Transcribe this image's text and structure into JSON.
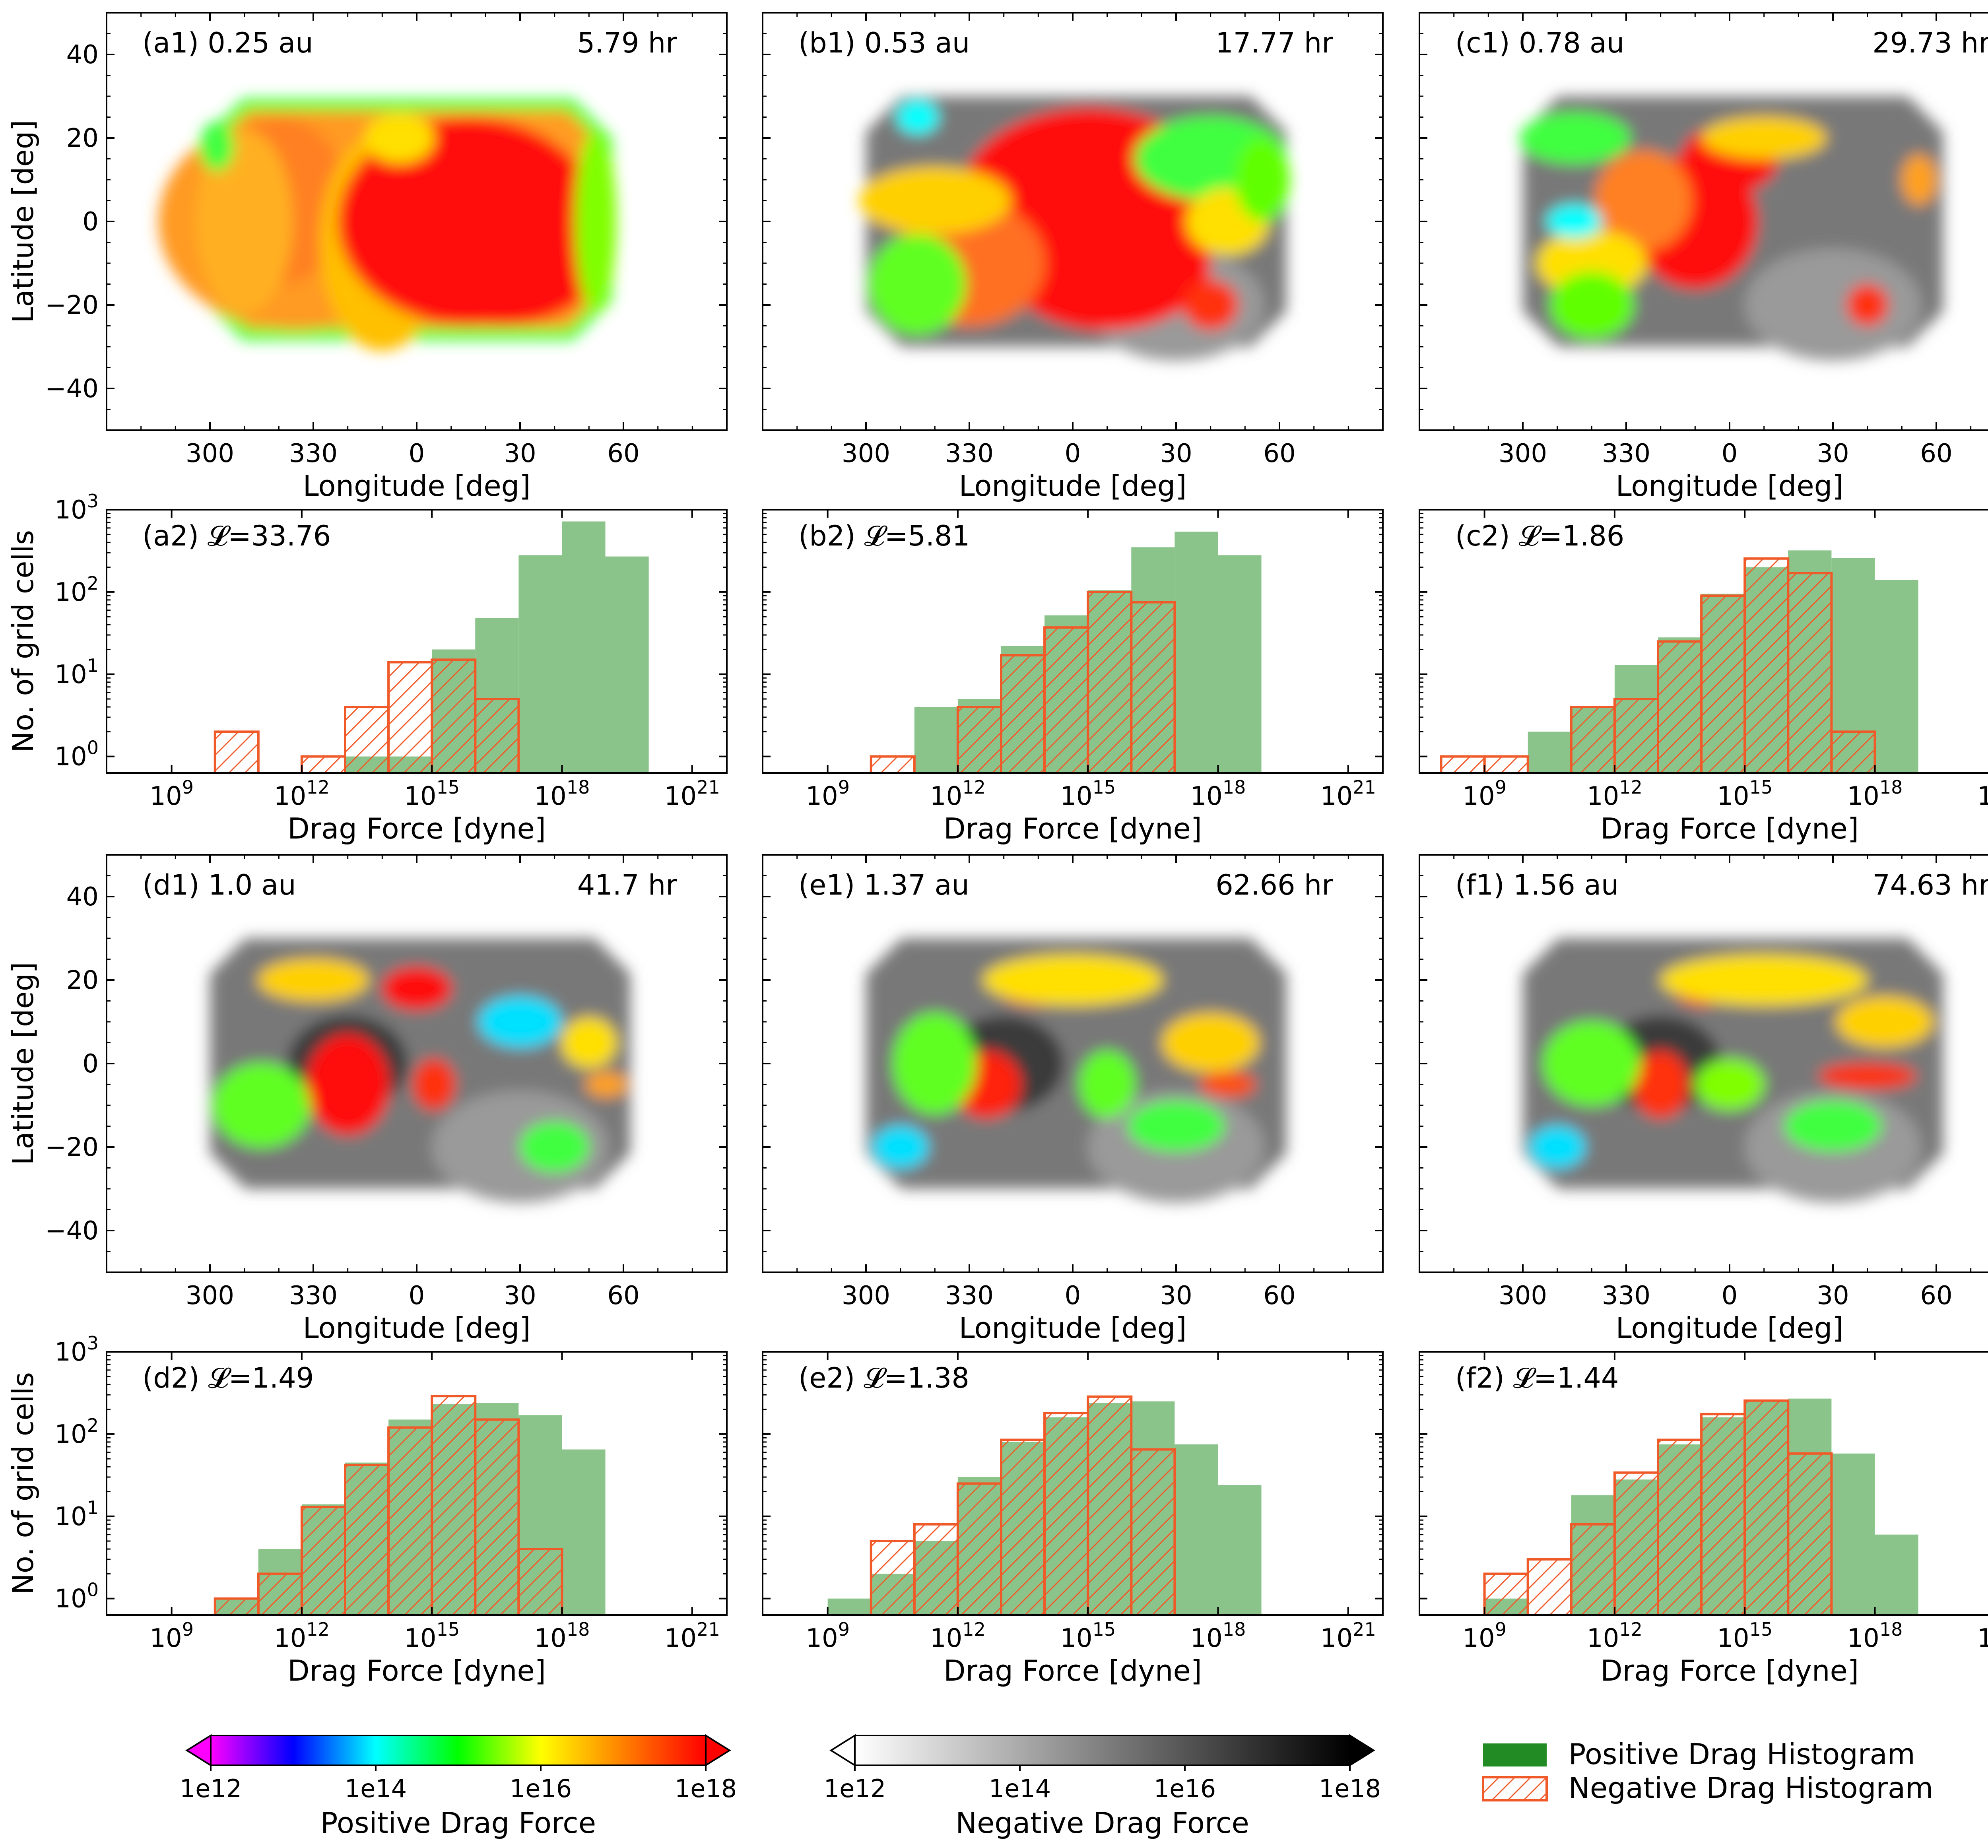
{
  "colors": {
    "positive_hist": "#8bc48b",
    "positive_legend": "#238b23",
    "negative_hatch": "#f05a28",
    "axis": "#000000"
  },
  "chart_data": [
    {
      "id": "a1",
      "type": "heatmap",
      "panel_label": "(a1) 0.25 au",
      "time_label": "5.79 hr",
      "xlabel": "Longitude [deg]",
      "ylabel": "Latitude [deg]",
      "xticks": [
        "300",
        "330",
        "0",
        "30",
        "60"
      ],
      "yticks": [
        "40",
        "20",
        "0",
        "−20",
        "−40"
      ],
      "ylim": [
        -50,
        50
      ],
      "positive_region": {
        "lon": [
          -60,
          55
        ],
        "lat": [
          -27,
          28
        ]
      },
      "peak_region": "center-east"
    },
    {
      "id": "b1",
      "type": "heatmap",
      "panel_label": "(b1) 0.53 au",
      "time_label": "17.77 hr",
      "xlabel": "Longitude [deg]",
      "ylabel": "",
      "xticks": [
        "300",
        "330",
        "0",
        "30",
        "60"
      ],
      "yticks": [
        "",
        "",
        "",
        "",
        ""
      ],
      "ylim": [
        -50,
        50
      ]
    },
    {
      "id": "c1",
      "type": "heatmap",
      "panel_label": "(c1) 0.78 au",
      "time_label": "29.73 hr",
      "xlabel": "Longitude [deg]",
      "ylabel": "",
      "xticks": [
        "300",
        "330",
        "0",
        "30",
        "60"
      ],
      "yticks": [
        "",
        "",
        "",
        "",
        ""
      ],
      "ylim": [
        -50,
        50
      ]
    },
    {
      "id": "a2",
      "type": "bar",
      "panel_label": "(a2) 𝓛=33.76",
      "xlabel": "Drag Force [dyne]",
      "ylabel": "No. of grid cells",
      "log_x": true,
      "log_y": true,
      "xticks": [
        "10^9",
        "10^12",
        "10^15",
        "10^18",
        "10^21"
      ],
      "yticks": [
        "10^3",
        "10^2",
        "10^1",
        "10^0"
      ],
      "bin_edges_log10": [
        7,
        8,
        9,
        10,
        11,
        12,
        13,
        14,
        15,
        16,
        17,
        18,
        19,
        20,
        21
      ],
      "series": [
        {
          "name": "Positive Drag Histogram",
          "values": [
            0,
            0,
            0,
            0,
            0,
            0,
            1,
            1,
            20,
            48,
            280,
            720,
            270,
            0
          ]
        },
        {
          "name": "Negative Drag Histogram",
          "values": [
            0,
            0,
            0,
            2,
            0,
            1,
            4,
            14,
            15,
            5,
            0,
            0,
            0,
            0
          ]
        }
      ]
    },
    {
      "id": "b2",
      "type": "bar",
      "panel_label": "(b2) 𝓛=5.81",
      "xlabel": "Drag Force [dyne]",
      "ylabel": "",
      "log_x": true,
      "log_y": true,
      "xticks": [
        "10^9",
        "10^12",
        "10^15",
        "10^18",
        "10^21"
      ],
      "bin_edges_log10": [
        7,
        8,
        9,
        10,
        11,
        12,
        13,
        14,
        15,
        16,
        17,
        18,
        19,
        20,
        21
      ],
      "series": [
        {
          "name": "Positive Drag Histogram",
          "values": [
            0,
            0,
            0,
            0,
            4,
            5,
            22,
            52,
            105,
            350,
            540,
            280,
            0,
            0
          ]
        },
        {
          "name": "Negative Drag Histogram",
          "values": [
            0,
            0,
            0,
            1,
            0,
            4,
            17,
            37,
            100,
            75,
            0,
            0,
            0,
            0
          ]
        }
      ]
    },
    {
      "id": "c2",
      "type": "bar",
      "panel_label": "(c2) 𝓛=1.86",
      "xlabel": "Drag Force [dyne]",
      "ylabel": "",
      "log_x": true,
      "log_y": true,
      "xticks": [
        "10^9",
        "10^12",
        "10^15",
        "10^18",
        "10^21"
      ],
      "bin_edges_log10": [
        7,
        8,
        9,
        10,
        11,
        12,
        13,
        14,
        15,
        16,
        17,
        18,
        19,
        20,
        21
      ],
      "series": [
        {
          "name": "Positive Drag Histogram",
          "values": [
            0,
            0,
            0,
            2,
            4,
            13,
            28,
            95,
            200,
            320,
            260,
            140,
            0,
            0
          ]
        },
        {
          "name": "Negative Drag Histogram",
          "values": [
            0,
            1,
            1,
            0,
            4,
            5,
            25,
            90,
            255,
            170,
            2,
            0,
            0,
            0
          ]
        }
      ]
    },
    {
      "id": "d1",
      "type": "heatmap",
      "panel_label": "(d1) 1.0 au",
      "time_label": "41.7 hr",
      "xlabel": "Longitude [deg]",
      "ylabel": "Latitude [deg]",
      "xticks": [
        "300",
        "330",
        "0",
        "30",
        "60"
      ],
      "yticks": [
        "40",
        "20",
        "0",
        "−20",
        "−40"
      ],
      "ylim": [
        -50,
        50
      ]
    },
    {
      "id": "e1",
      "type": "heatmap",
      "panel_label": "(e1) 1.37 au",
      "time_label": "62.66 hr",
      "xlabel": "Longitude [deg]",
      "ylabel": "",
      "xticks": [
        "300",
        "330",
        "0",
        "30",
        "60"
      ],
      "yticks": [
        "",
        "",
        "",
        "",
        ""
      ],
      "ylim": [
        -50,
        50
      ]
    },
    {
      "id": "f1",
      "type": "heatmap",
      "panel_label": "(f1) 1.56 au",
      "time_label": "74.63 hr",
      "xlabel": "Longitude [deg]",
      "ylabel": "",
      "xticks": [
        "300",
        "330",
        "0",
        "30",
        "60"
      ],
      "yticks": [
        "",
        "",
        "",
        "",
        ""
      ],
      "ylim": [
        -50,
        50
      ]
    },
    {
      "id": "d2",
      "type": "bar",
      "panel_label": "(d2) 𝓛=1.49",
      "xlabel": "Drag Force [dyne]",
      "ylabel": "No. of grid cells",
      "log_x": true,
      "log_y": true,
      "xticks": [
        "10^9",
        "10^12",
        "10^15",
        "10^18",
        "10^21"
      ],
      "yticks": [
        "10^3",
        "10^2",
        "10^1",
        "10^0"
      ],
      "bin_edges_log10": [
        7,
        8,
        9,
        10,
        11,
        12,
        13,
        14,
        15,
        16,
        17,
        18,
        19,
        20,
        21
      ],
      "series": [
        {
          "name": "Positive Drag Histogram",
          "values": [
            0,
            0,
            0,
            1,
            4,
            14,
            45,
            150,
            230,
            240,
            170,
            65,
            0,
            0
          ]
        },
        {
          "name": "Negative Drag Histogram",
          "values": [
            0,
            0,
            0,
            1,
            2,
            13,
            42,
            120,
            290,
            150,
            4,
            0,
            0,
            0
          ]
        }
      ]
    },
    {
      "id": "e2",
      "type": "bar",
      "panel_label": "(e2) 𝓛=1.38",
      "xlabel": "Drag Force [dyne]",
      "ylabel": "",
      "log_x": true,
      "log_y": true,
      "xticks": [
        "10^9",
        "10^12",
        "10^15",
        "10^18",
        "10^21"
      ],
      "bin_edges_log10": [
        7,
        8,
        9,
        10,
        11,
        12,
        13,
        14,
        15,
        16,
        17,
        18,
        19,
        20,
        21
      ],
      "series": [
        {
          "name": "Positive Drag Histogram",
          "values": [
            0,
            0,
            1,
            2,
            5,
            30,
            80,
            160,
            240,
            250,
            75,
            24,
            0,
            0
          ]
        },
        {
          "name": "Negative Drag Histogram",
          "values": [
            0,
            0,
            0,
            5,
            8,
            25,
            85,
            180,
            285,
            65,
            0,
            0,
            0,
            0
          ]
        }
      ]
    },
    {
      "id": "f2",
      "type": "bar",
      "panel_label": "(f2) 𝓛=1.44",
      "xlabel": "Drag Force [dyne]",
      "ylabel": "",
      "log_x": true,
      "log_y": true,
      "xticks": [
        "10^9",
        "10^12",
        "10^15",
        "10^18",
        "10^21"
      ],
      "bin_edges_log10": [
        7,
        8,
        9,
        10,
        11,
        12,
        13,
        14,
        15,
        16,
        17,
        18,
        19,
        20,
        21
      ],
      "series": [
        {
          "name": "Positive Drag Histogram",
          "values": [
            0,
            0,
            1,
            0,
            18,
            28,
            75,
            160,
            250,
            270,
            58,
            6,
            0,
            0
          ]
        },
        {
          "name": "Negative Drag Histogram",
          "values": [
            0,
            0,
            2,
            3,
            8,
            34,
            85,
            175,
            255,
            58,
            0,
            0,
            0,
            0
          ]
        }
      ]
    }
  ],
  "colorbars": [
    {
      "id": "positive",
      "label": "Positive Drag Force",
      "ticks": [
        "1e12",
        "1e14",
        "1e16",
        "1e18"
      ],
      "extend": "both",
      "stops": [
        "#ff00ff",
        "#0000ff",
        "#00ffff",
        "#00ff00",
        "#ffff00",
        "#ff8000",
        "#ff0000"
      ]
    },
    {
      "id": "negative",
      "label": "Negative Drag Force",
      "ticks": [
        "1e12",
        "1e14",
        "1e16",
        "1e18"
      ],
      "extend": "both",
      "stops": [
        "#ffffff",
        "#000000"
      ]
    }
  ],
  "legend": {
    "positive_label": "Positive Drag Histogram",
    "negative_label": "Negative Drag Histogram"
  }
}
